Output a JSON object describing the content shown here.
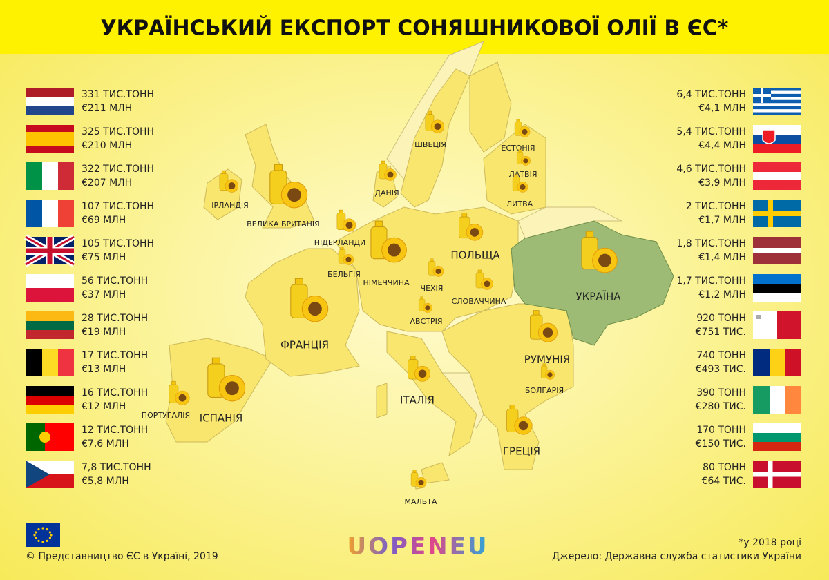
{
  "header": {
    "title": "УКРАЇНСЬКИЙ ЕКСПОРТ СОНЯШНИКОВОЇ ОЛІЇ В ЄС*"
  },
  "left_list": [
    {
      "volume": "331 ТИС.ТОНН",
      "value": "€211 МЛН"
    },
    {
      "volume": "325 ТИС.ТОНН",
      "value": "€210 МЛН"
    },
    {
      "volume": "322 ТИС.ТОНН",
      "value": "€207 МЛН"
    },
    {
      "volume": "107 ТИС.ТОНН",
      "value": "€69 МЛН"
    },
    {
      "volume": "105 ТИС.ТОНН",
      "value": "€75 МЛН"
    },
    {
      "volume": "56 ТИС.ТОНН",
      "value": "€37 МЛН"
    },
    {
      "volume": "28 ТИС.ТОНН",
      "value": "€19 МЛН"
    },
    {
      "volume": "17 ТИС.ТОНН",
      "value": "€13 МЛН"
    },
    {
      "volume": "16 ТИС.ТОНН",
      "value": "€12 МЛН"
    },
    {
      "volume": "12 ТИС.ТОНН",
      "value": "€7,6 МЛН"
    },
    {
      "volume": "7,8 ТИС.ТОНН",
      "value": "€5,8 МЛН"
    }
  ],
  "right_list": [
    {
      "volume": "6,4 ТИС.ТОНН",
      "value": "€4,1 МЛН"
    },
    {
      "volume": "5,4 ТИС.ТОНН",
      "value": "€4,4 МЛН"
    },
    {
      "volume": "4,6 ТИС.ТОНН",
      "value": "€3,9 МЛН"
    },
    {
      "volume": "2 ТИС.ТОНН",
      "value": "€1,7 МЛН"
    },
    {
      "volume": "1,8 ТИС.ТОНН",
      "value": "€1,4 МЛН"
    },
    {
      "volume": "1,7 ТИС.ТОНН",
      "value": "€1,2 МЛН"
    },
    {
      "volume": "920 ТОНН",
      "value": "€751 ТИС."
    },
    {
      "volume": "740 ТОНН",
      "value": "€493 ТИС."
    },
    {
      "volume": "390 ТОНН",
      "value": "€280 ТИС."
    },
    {
      "volume": "170 ТОНН",
      "value": "€150 ТИС."
    },
    {
      "volume": "80 ТОНН",
      "value": "€64 ТИС."
    }
  ],
  "map_labels": [
    "ІРЛАНДІЯ",
    "ВЕЛИКА БРИТАНІЯ",
    "ДАНІЯ",
    "ШВЕЦІЯ",
    "ЕСТОНІЯ",
    "ЛАТВІЯ",
    "ЛИТВА",
    "НІДЕРЛАНДИ",
    "БЕЛЬГІЯ",
    "НІМЕЧЧИНА",
    "ПОЛЬЩА",
    "ЧЕХІЯ",
    "СЛОВАЧЧИНА",
    "АВСТРІЯ",
    "ФРАНЦІЯ",
    "ІТАЛІЯ",
    "РУМУНІЯ",
    "БОЛГАРІЯ",
    "ПОРТУГАЛІЯ",
    "ІСПАНІЯ",
    "ГРЕЦІЯ",
    "МАЛЬТА",
    "УКРАЇНА"
  ],
  "footer": {
    "copyright": "© Представництво ЄС в Україні, 2019",
    "logo": "UOPENEU",
    "note": "*у 2018 році",
    "source": "Джерело: Державна служба статистики України"
  }
}
